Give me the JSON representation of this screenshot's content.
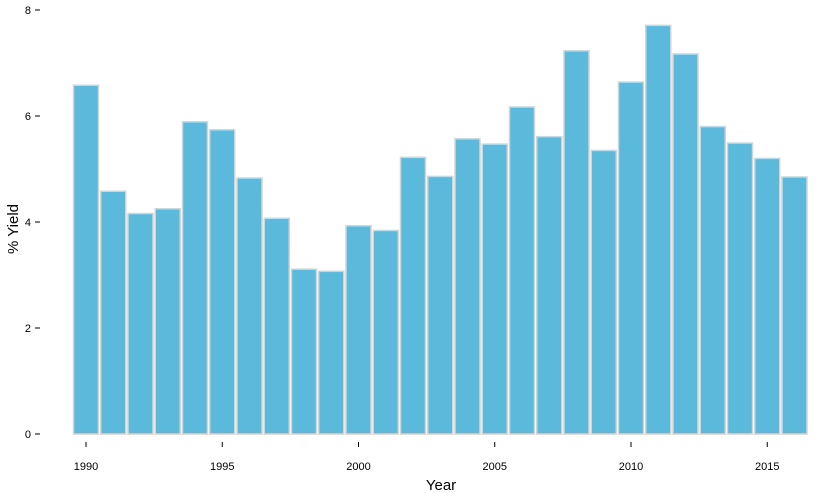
{
  "chart_data": {
    "type": "bar",
    "title": "",
    "xlabel": "Year",
    "ylabel": "% Yield",
    "categories": [
      1990,
      1991,
      1992,
      1993,
      1994,
      1995,
      1996,
      1997,
      1998,
      1999,
      2000,
      2001,
      2002,
      2003,
      2004,
      2005,
      2006,
      2007,
      2008,
      2009,
      2010,
      2011,
      2012,
      2013,
      2014,
      2015,
      2016
    ],
    "values": [
      6.58,
      4.58,
      4.16,
      4.25,
      5.89,
      5.74,
      4.83,
      4.07,
      3.11,
      3.07,
      3.93,
      3.84,
      5.22,
      4.86,
      5.57,
      5.47,
      6.17,
      5.61,
      7.23,
      5.35,
      6.64,
      7.71,
      7.17,
      5.8,
      5.49,
      5.2,
      4.85
    ],
    "ylim": [
      0,
      8
    ],
    "yticks": [
      0,
      2,
      4,
      6,
      8
    ],
    "xticks": [
      1990,
      1995,
      2000,
      2005,
      2010,
      2015
    ],
    "grid": false,
    "legend": "none",
    "colors": {
      "bar_fill": "#5bbadc",
      "bar_stroke": "#d4d4d4",
      "axis": "#000000"
    }
  }
}
